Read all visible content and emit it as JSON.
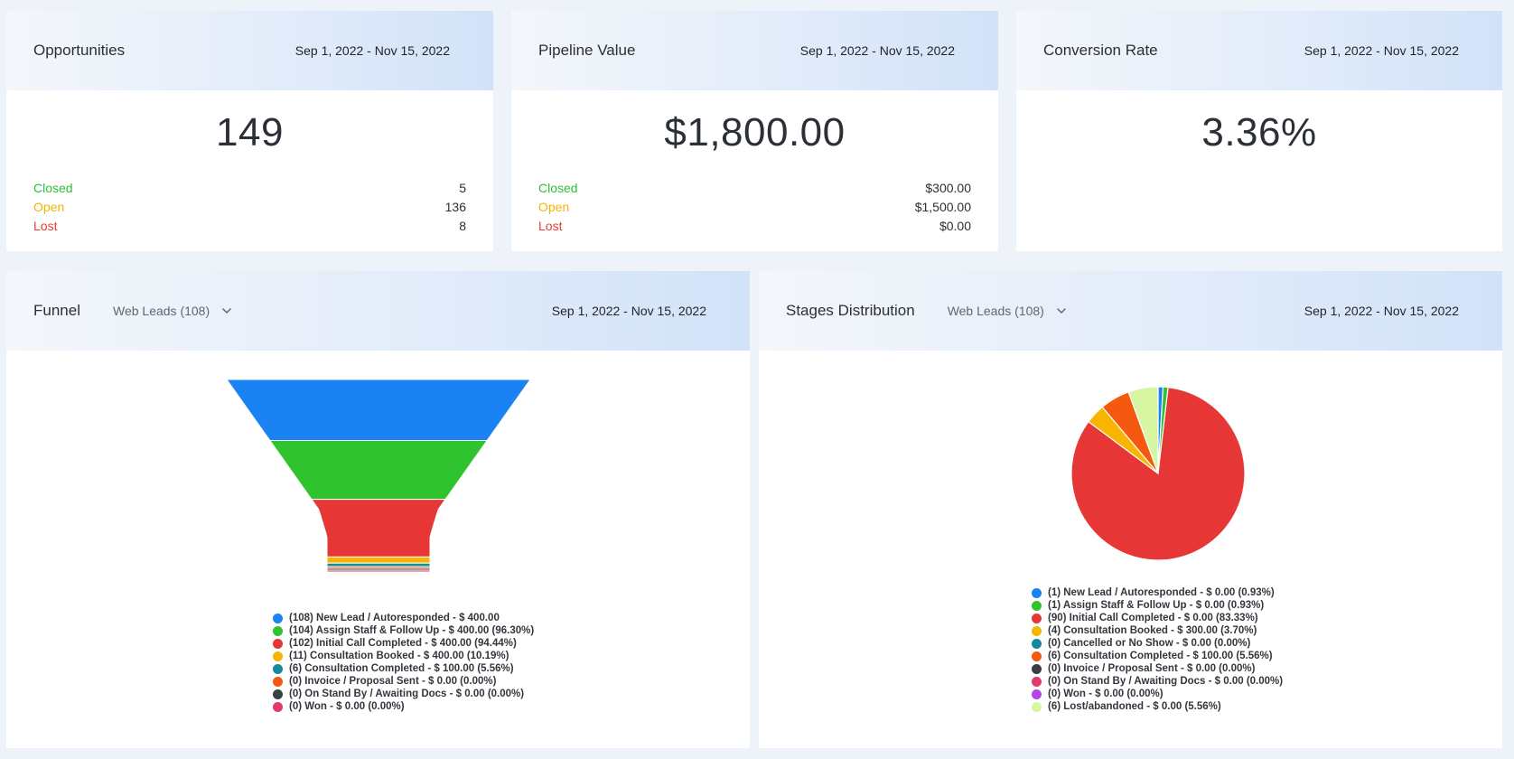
{
  "opportunities": {
    "title": "Opportunities",
    "date_range": "Sep 1, 2022 - Nov 15, 2022",
    "total": "149",
    "rows": [
      {
        "label": "Closed",
        "value": "5"
      },
      {
        "label": "Open",
        "value": "136"
      },
      {
        "label": "Lost",
        "value": "8"
      }
    ]
  },
  "pipeline": {
    "title": "Pipeline Value",
    "date_range": "Sep 1, 2022 - Nov 15, 2022",
    "total": "$1,800.00",
    "rows": [
      {
        "label": "Closed",
        "value": "$300.00"
      },
      {
        "label": "Open",
        "value": "$1,500.00"
      },
      {
        "label": "Lost",
        "value": "$0.00"
      }
    ]
  },
  "conversion": {
    "title": "Conversion Rate",
    "date_range": "Sep 1, 2022 - Nov 15, 2022",
    "total": "3.36%"
  },
  "funnel": {
    "title": "Funnel",
    "dropdown": "Web Leads (108)",
    "date_range": "Sep 1, 2022 - Nov 15, 2022"
  },
  "stages": {
    "title": "Stages Distribution",
    "dropdown": "Web Leads (108)",
    "date_range": "Sep 1, 2022 - Nov 15, 2022"
  },
  "icons": {
    "dropdown": "chevron-down-icon"
  },
  "chart_data": [
    {
      "type": "funnel",
      "categories": [
        "New Lead / Autoresponded",
        "Assign Staff & Follow Up",
        "Initial Call Completed",
        "Consultation Booked",
        "Consultation Completed",
        "Invoice / Proposal Sent",
        "On Stand By / Awaiting Docs",
        "Won"
      ],
      "counts": [
        108,
        104,
        102,
        11,
        6,
        0,
        0,
        0
      ],
      "values": [
        400.0,
        400.0,
        400.0,
        400.0,
        100.0,
        0.0,
        0.0,
        0.0
      ],
      "percents": [
        100,
        96.3,
        94.44,
        10.19,
        5.56,
        0.0,
        0.0,
        0.0
      ],
      "colors": [
        "#1a82f2",
        "#2fc32f",
        "#e63636",
        "#f7b500",
        "#158a9e",
        "#f5580f",
        "#3b3e44",
        "#e23a6c"
      ],
      "legend_labels": [
        "(108) New Lead / Autoresponded - $ 400.00",
        "(104) Assign Staff & Follow Up - $ 400.00 (96.30%)",
        "(102) Initial Call Completed - $ 400.00 (94.44%)",
        "(11) Consultation Booked - $ 400.00 (10.19%)",
        "(6) Consultation Completed - $ 100.00 (5.56%)",
        "(0) Invoice / Proposal Sent - $ 0.00 (0.00%)",
        "(0) On Stand By / Awaiting Docs - $ 0.00 (0.00%)",
        "(0) Won - $ 0.00 (0.00%)"
      ]
    },
    {
      "type": "pie",
      "categories": [
        "New Lead / Autoresponded",
        "Assign Staff & Follow Up",
        "Initial Call Completed",
        "Consultation Booked",
        "Cancelled or No Show",
        "Consultation Completed",
        "Invoice / Proposal Sent",
        "On Stand By / Awaiting Docs",
        "Won",
        "Lost/abandoned"
      ],
      "counts": [
        1,
        1,
        90,
        4,
        0,
        6,
        0,
        0,
        0,
        6
      ],
      "values": [
        0.0,
        0.0,
        0.0,
        300.0,
        0.0,
        100.0,
        0.0,
        0.0,
        0.0,
        0.0
      ],
      "percents": [
        0.93,
        0.93,
        83.33,
        3.7,
        0.0,
        5.56,
        0.0,
        0.0,
        0.0,
        5.56
      ],
      "colors": [
        "#1a82f2",
        "#2fc32f",
        "#e63636",
        "#f7b500",
        "#158a9e",
        "#f5580f",
        "#3b3e44",
        "#e23a6c",
        "#b545e6",
        "#d8f5a2"
      ],
      "legend_labels": [
        "(1) New Lead / Autoresponded - $ 0.00 (0.93%)",
        "(1) Assign Staff & Follow Up - $ 0.00 (0.93%)",
        "(90) Initial Call Completed - $ 0.00 (83.33%)",
        "(4) Consultation Booked - $ 300.00 (3.70%)",
        "(0) Cancelled or No Show - $ 0.00 (0.00%)",
        "(6) Consultation Completed - $ 100.00 (5.56%)",
        "(0) Invoice / Proposal Sent - $ 0.00 (0.00%)",
        "(0) On Stand By / Awaiting Docs - $ 0.00 (0.00%)",
        "(0) Won - $ 0.00 (0.00%)",
        "(6) Lost/abandoned - $ 0.00 (5.56%)"
      ]
    }
  ]
}
